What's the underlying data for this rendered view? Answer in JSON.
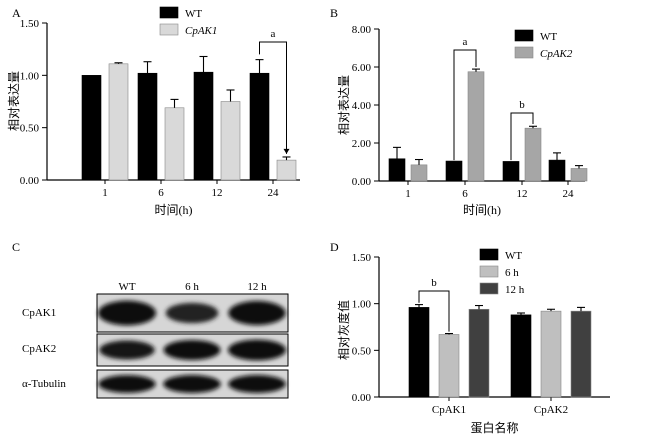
{
  "chart_data": [
    {
      "panel": "A",
      "type": "bar",
      "categories": [
        "1",
        "6",
        "12",
        "24"
      ],
      "xlabel": "时间(h)",
      "ylabel": "相对表达量",
      "ylim": [
        0,
        1.5
      ],
      "yticks": [
        "0.00",
        "0.50",
        "1.00",
        "1.50"
      ],
      "grid": false,
      "legend": "top",
      "series": [
        {
          "name": "WT",
          "color": "#000000",
          "values": [
            1.0,
            1.02,
            1.03,
            1.02
          ],
          "errors": [
            0.0,
            0.11,
            0.15,
            0.13
          ]
        },
        {
          "name": "CpAK1",
          "color": "#d9d9d9",
          "values": [
            1.11,
            0.69,
            0.75,
            0.19
          ],
          "errors": [
            0.01,
            0.08,
            0.11,
            0.03
          ]
        }
      ],
      "annotations": [
        {
          "label": "a",
          "category_index": 3
        }
      ]
    },
    {
      "panel": "B",
      "type": "bar",
      "categories": [
        "1",
        "6",
        "12",
        "24"
      ],
      "xlabel": "时间(h)",
      "ylabel": "相对表达量",
      "ylim": [
        0,
        8
      ],
      "yticks": [
        "0.00",
        "2.00",
        "4.00",
        "6.00",
        "8.00"
      ],
      "grid": false,
      "legend": "top",
      "series": [
        {
          "name": "WT",
          "color": "#000000",
          "values": [
            1.17,
            1.05,
            1.03,
            1.1
          ],
          "errors": [
            0.6,
            0.0,
            0.0,
            0.38
          ]
        },
        {
          "name": "CpAK2",
          "color": "#a6a6a6",
          "values": [
            0.85,
            5.75,
            2.78,
            0.66
          ],
          "errors": [
            0.28,
            0.14,
            0.1,
            0.15
          ]
        }
      ],
      "annotations": [
        {
          "label": "a",
          "category_index": 1
        },
        {
          "label": "b",
          "category_index": 2
        }
      ]
    },
    {
      "panel": "D",
      "type": "bar",
      "categories": [
        "CpAK1",
        "CpAK2"
      ],
      "xlabel": "蛋白名称",
      "ylabel": "相对灰度值",
      "ylim": [
        0,
        1.5
      ],
      "yticks": [
        "0.00",
        "0.50",
        "1.00",
        "1.50"
      ],
      "grid": false,
      "legend": "top",
      "series": [
        {
          "name": "WT",
          "color": "#000000",
          "values": [
            0.96,
            0.88
          ],
          "errors": [
            0.03,
            0.02
          ]
        },
        {
          "name": "6 h",
          "color": "#bfbfbf",
          "values": [
            0.67,
            0.92
          ],
          "errors": [
            0.01,
            0.02
          ]
        },
        {
          "name": "12 h",
          "color": "#404040",
          "values": [
            0.94,
            0.92
          ],
          "errors": [
            0.04,
            0.04
          ]
        }
      ],
      "annotations": [
        {
          "label": "b",
          "category_index": 0
        }
      ]
    }
  ],
  "blot": {
    "panel": "C",
    "lanes": [
      "WT",
      "6 h",
      "12 h"
    ],
    "rows": [
      {
        "name": "CpAK1",
        "intensities": [
          1.0,
          0.62,
          0.95
        ]
      },
      {
        "name": "CpAK2",
        "intensities": [
          0.82,
          0.92,
          1.0
        ]
      },
      {
        "name": "α-Tubulin",
        "intensities": [
          0.95,
          0.97,
          0.97
        ]
      }
    ]
  }
}
